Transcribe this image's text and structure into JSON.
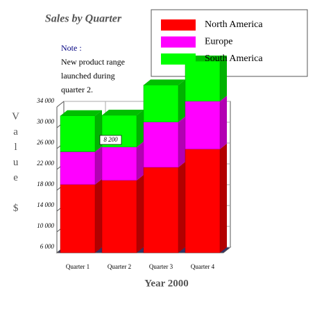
{
  "chart_data": {
    "type": "bar3d_stacked",
    "title": "Sales by Quarter",
    "xlabel": "Year 2000",
    "ylabel": "Value $",
    "categories": [
      "Quarter 1",
      "Quarter 2",
      "Quarter 3",
      "Quarter 4"
    ],
    "series": [
      {
        "name": "North America",
        "color": "#ff0000",
        "values": [
          13100,
          13900,
          16400,
          19900
        ]
      },
      {
        "name": "Europe",
        "color": "#ff00ff",
        "values": [
          6300,
          6400,
          8700,
          9200
        ]
      },
      {
        "name": "South America",
        "color": "#00ff00",
        "values": [
          6900,
          6100,
          7100,
          7700
        ]
      }
    ],
    "ylim": [
      6000,
      34000
    ],
    "yticks": [
      {
        "value": 6000,
        "label": "6 000"
      },
      {
        "value": 10000,
        "label": "10 000"
      },
      {
        "value": 14000,
        "label": "14 000"
      },
      {
        "value": 18000,
        "label": "18 000"
      },
      {
        "value": 22000,
        "label": "22 000"
      },
      {
        "value": 26000,
        "label": "26 000"
      },
      {
        "value": 30000,
        "label": "30 000"
      },
      {
        "value": 34000,
        "label": "34 000"
      }
    ],
    "grid": true,
    "legend": "top-right",
    "note": {
      "heading": "Note :",
      "lines": [
        "New product range",
        "launched during",
        "quarter 2."
      ]
    },
    "callout": "8 200"
  }
}
